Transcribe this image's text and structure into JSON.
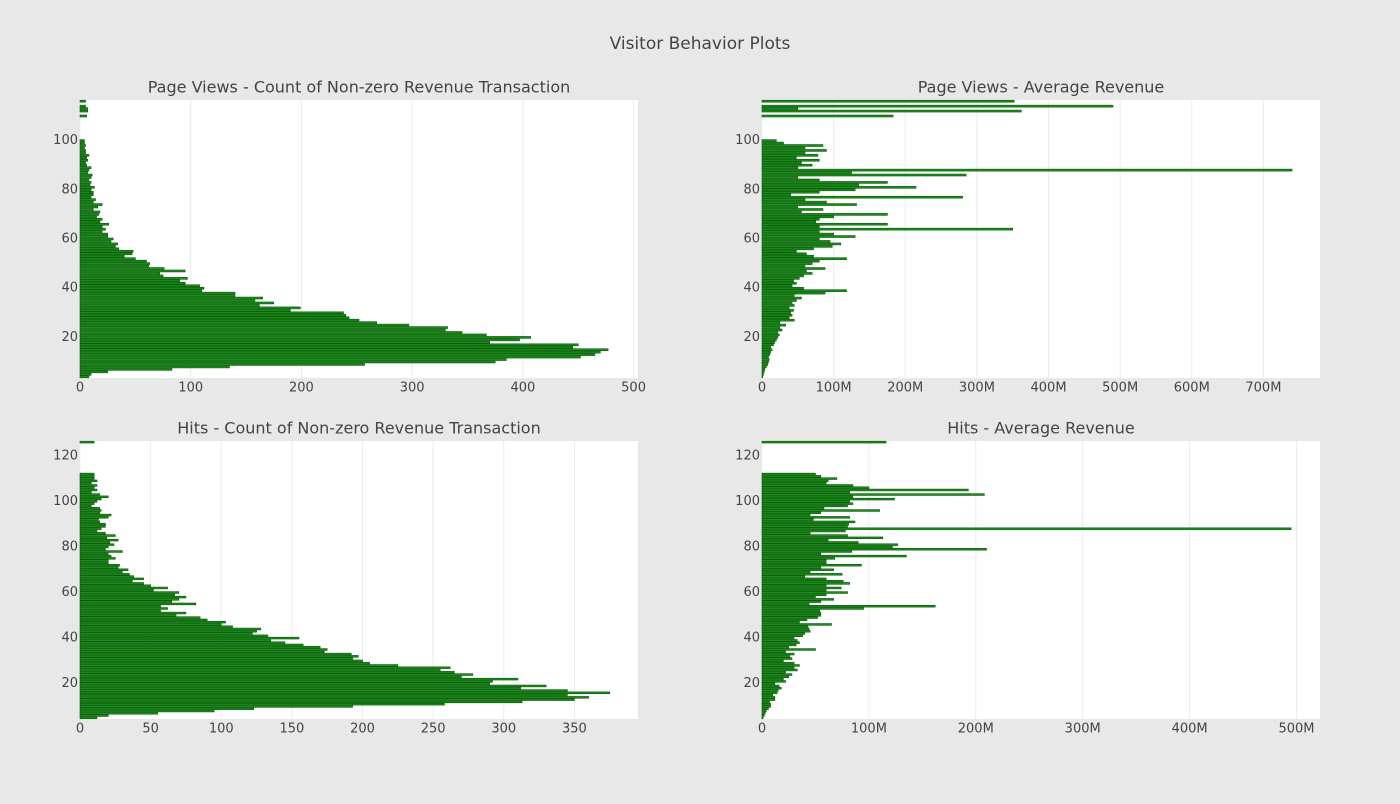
{
  "title": "Visitor Behavior Plots",
  "chart_data": [
    {
      "type": "bar",
      "orientation": "h",
      "title": "Page Views - Count of Non-zero Revenue Transaction",
      "color": "#1c8c1c",
      "y": [
        4,
        5,
        6,
        7,
        8,
        9,
        10,
        11,
        12,
        13,
        14,
        15,
        16,
        17,
        18,
        19,
        20,
        21,
        22,
        23,
        24,
        25,
        26,
        27,
        28,
        29,
        30,
        31,
        32,
        33,
        34,
        35,
        36,
        37,
        38,
        39,
        40,
        41,
        42,
        43,
        44,
        45,
        46,
        47,
        48,
        49,
        50,
        51,
        52,
        53,
        54,
        55,
        56,
        57,
        58,
        59,
        60,
        61,
        62,
        63,
        64,
        65,
        66,
        67,
        68,
        69,
        70,
        71,
        72,
        73,
        74,
        75,
        76,
        77,
        78,
        79,
        80,
        81,
        82,
        83,
        84,
        85,
        86,
        87,
        88,
        89,
        90,
        91,
        92,
        93,
        94,
        95,
        96,
        97,
        98,
        99,
        100,
        101,
        102,
        103,
        104,
        105,
        106,
        107,
        108,
        109,
        110,
        111,
        112,
        113,
        114,
        115,
        116
      ],
      "values": [
        8,
        10,
        25,
        83,
        135,
        257,
        375,
        385,
        452,
        465,
        470,
        477,
        445,
        450,
        370,
        397,
        407,
        367,
        345,
        330,
        332,
        297,
        268,
        252,
        243,
        240,
        238,
        190,
        199,
        162,
        175,
        158,
        165,
        140,
        140,
        110,
        112,
        108,
        95,
        90,
        97,
        75,
        72,
        95,
        76,
        62,
        63,
        60,
        50,
        40,
        47,
        48,
        35,
        32,
        34,
        28,
        30,
        25,
        25,
        20,
        23,
        20,
        26,
        18,
        20,
        15,
        17,
        18,
        12,
        16,
        20,
        12,
        14,
        10,
        12,
        12,
        10,
        13,
        9,
        10,
        8,
        10,
        11,
        7,
        8,
        10,
        6,
        5,
        7,
        6,
        8,
        5,
        5,
        4,
        5,
        4,
        4,
        0,
        0,
        0,
        0,
        0,
        0,
        0,
        0,
        0,
        6,
        0,
        7,
        7,
        5,
        0,
        5
      ],
      "xlim": [
        0,
        504
      ],
      "xticks": [
        0,
        100,
        200,
        300,
        400,
        500
      ],
      "ylim": [
        3.5,
        116.5
      ],
      "yticks": [
        20,
        40,
        60,
        80,
        100
      ],
      "grid": true
    },
    {
      "type": "bar",
      "orientation": "h",
      "title": "Page Views - Average Revenue",
      "color": "#1c8c1c",
      "y": [
        4,
        5,
        6,
        7,
        8,
        9,
        10,
        11,
        12,
        13,
        14,
        15,
        16,
        17,
        18,
        19,
        20,
        21,
        22,
        23,
        24,
        25,
        26,
        27,
        28,
        29,
        30,
        31,
        32,
        33,
        34,
        35,
        36,
        37,
        38,
        39,
        40,
        41,
        42,
        43,
        44,
        45,
        46,
        47,
        48,
        49,
        50,
        51,
        52,
        53,
        54,
        55,
        56,
        57,
        58,
        59,
        60,
        61,
        62,
        63,
        64,
        65,
        66,
        67,
        68,
        69,
        70,
        71,
        72,
        73,
        74,
        75,
        76,
        77,
        78,
        79,
        80,
        81,
        82,
        83,
        84,
        85,
        86,
        87,
        88,
        89,
        90,
        91,
        92,
        93,
        94,
        95,
        96,
        97,
        98,
        99,
        100,
        101,
        102,
        103,
        104,
        105,
        106,
        107,
        108,
        109,
        110,
        111,
        112,
        113,
        114,
        115,
        116
      ],
      "values": [
        1000000.0,
        2000000.0,
        3000000.0,
        4000000.0,
        6000000.0,
        8000000.0,
        9000000.0,
        10000000.0,
        9000000.0,
        11000000.0,
        12000000.0,
        14000000.0,
        12000000.0,
        16000000.0,
        18000000.0,
        20000000.0,
        22000000.0,
        24000000.0,
        22000000.0,
        28000000.0,
        25000000.0,
        33000000.0,
        25000000.0,
        45000000.0,
        38000000.0,
        42000000.0,
        40000000.0,
        44000000.0,
        38000000.0,
        45000000.0,
        42000000.0,
        48000000.0,
        55000000.0,
        45000000.0,
        88000000.0,
        118000000.0,
        58000000.0,
        42000000.0,
        48000000.0,
        44000000.0,
        52000000.0,
        58000000.0,
        70000000.0,
        62000000.0,
        88000000.0,
        60000000.0,
        70000000.0,
        80000000.0,
        118000000.0,
        72000000.0,
        62000000.0,
        48000000.0,
        72000000.0,
        98000000.0,
        110000000.0,
        95000000.0,
        80000000.0,
        130000000.0,
        100000000.0,
        80000000.0,
        350000000.0,
        80000000.0,
        175000000.0,
        75000000.0,
        80000000.0,
        100000000.0,
        175000000.0,
        55000000.0,
        85000000.0,
        50000000.0,
        132000000.0,
        90000000.0,
        60000000.0,
        280000000.0,
        40000000.0,
        80000000.0,
        130000000.0,
        215000000.0,
        135000000.0,
        175000000.0,
        80000000.0,
        50000000.0,
        285000000.0,
        125000000.0,
        740000000.0,
        50000000.0,
        70000000.0,
        55000000.0,
        80000000.0,
        48000000.0,
        78000000.0,
        60000000.0,
        90000000.0,
        60000000.0,
        85000000.0,
        30000000.0,
        20000000.0,
        null,
        null,
        null,
        null,
        null,
        null,
        null,
        null,
        null,
        183000000.0,
        null,
        362000000.0,
        50000000.0,
        490000000.0,
        null,
        352000000.0
      ],
      "xlim": [
        0,
        779000000.0
      ],
      "xticks": [
        0,
        {
          "value": 100000000.0,
          "label": "100M"
        },
        {
          "value": 200000000.0,
          "label": "200M"
        },
        {
          "value": 300000000.0,
          "label": "300M"
        },
        {
          "value": 400000000.0,
          "label": "400M"
        },
        {
          "value": 500000000.0,
          "label": "500M"
        },
        {
          "value": 600000000.0,
          "label": "600M"
        },
        {
          "value": 700000000.0,
          "label": "700M"
        }
      ],
      "ylim": [
        3.5,
        116.5
      ],
      "yticks": [
        20,
        40,
        60,
        80,
        100
      ],
      "grid": true
    },
    {
      "type": "bar",
      "orientation": "h",
      "title": "Hits - Count of Non-zero Revenue Transaction",
      "color": "#1c8c1c",
      "y": [
        5,
        6,
        7,
        8,
        9,
        10,
        11,
        12,
        13,
        14,
        15,
        16,
        17,
        18,
        19,
        20,
        21,
        22,
        23,
        24,
        25,
        26,
        27,
        28,
        29,
        30,
        31,
        32,
        33,
        34,
        35,
        36,
        37,
        38,
        39,
        40,
        41,
        42,
        43,
        44,
        45,
        46,
        47,
        48,
        49,
        50,
        51,
        52,
        53,
        54,
        55,
        56,
        57,
        58,
        59,
        60,
        61,
        62,
        63,
        64,
        65,
        66,
        67,
        68,
        69,
        70,
        71,
        72,
        73,
        74,
        75,
        76,
        77,
        78,
        79,
        80,
        81,
        82,
        83,
        84,
        85,
        86,
        87,
        88,
        89,
        90,
        91,
        92,
        93,
        94,
        95,
        96,
        97,
        98,
        99,
        100,
        101,
        102,
        103,
        104,
        105,
        106,
        107,
        108,
        109,
        110,
        111,
        112,
        113,
        114,
        115,
        116,
        117,
        118,
        119,
        120,
        121,
        122,
        123,
        124,
        125,
        126
      ],
      "values": [
        12,
        20,
        55,
        95,
        123,
        193,
        258,
        313,
        350,
        360,
        345,
        375,
        345,
        312,
        330,
        290,
        292,
        310,
        270,
        278,
        265,
        255,
        262,
        225,
        205,
        200,
        193,
        197,
        192,
        173,
        175,
        170,
        158,
        145,
        135,
        155,
        133,
        122,
        125,
        128,
        108,
        100,
        103,
        90,
        85,
        68,
        75,
        57,
        62,
        57,
        82,
        65,
        70,
        75,
        67,
        70,
        52,
        62,
        50,
        45,
        37,
        45,
        38,
        35,
        30,
        34,
        27,
        28,
        20,
        20,
        25,
        22,
        20,
        30,
        18,
        20,
        24,
        21,
        27,
        19,
        25,
        18,
        12,
        15,
        18,
        18,
        14,
        13,
        20,
        22,
        14,
        15,
        14,
        8,
        10,
        12,
        15,
        20,
        14,
        8,
        12,
        10,
        12,
        8,
        12,
        10,
        10,
        10,
        0,
        0,
        0,
        0,
        0,
        0,
        0,
        0,
        0,
        0,
        0,
        0,
        0,
        10
      ],
      "xlim": [
        0,
        395
      ],
      "xticks": [
        0,
        50,
        100,
        150,
        200,
        250,
        300,
        350
      ],
      "ylim": [
        4.5,
        126.5
      ],
      "yticks": [
        20,
        40,
        60,
        80,
        100,
        120
      ],
      "grid": true
    },
    {
      "type": "bar",
      "orientation": "h",
      "title": "Hits - Average Revenue",
      "color": "#1c8c1c",
      "y": [
        5,
        6,
        7,
        8,
        9,
        10,
        11,
        12,
        13,
        14,
        15,
        16,
        17,
        18,
        19,
        20,
        21,
        22,
        23,
        24,
        25,
        26,
        27,
        28,
        29,
        30,
        31,
        32,
        33,
        34,
        35,
        36,
        37,
        38,
        39,
        40,
        41,
        42,
        43,
        44,
        45,
        46,
        47,
        48,
        49,
        50,
        51,
        52,
        53,
        54,
        55,
        56,
        57,
        58,
        59,
        60,
        61,
        62,
        63,
        64,
        65,
        66,
        67,
        68,
        69,
        70,
        71,
        72,
        73,
        74,
        75,
        76,
        77,
        78,
        79,
        80,
        81,
        82,
        83,
        84,
        85,
        86,
        87,
        88,
        89,
        90,
        91,
        92,
        93,
        94,
        95,
        96,
        97,
        98,
        99,
        100,
        101,
        102,
        103,
        104,
        105,
        106,
        107,
        108,
        109,
        110,
        111,
        112,
        113,
        114,
        115,
        116,
        117,
        118,
        119,
        120,
        121,
        122,
        123,
        124,
        125,
        126
      ],
      "values": [
        1000000.0,
        2000000.0,
        3000000.0,
        4000000.0,
        6000000.0,
        8000000.0,
        8000000.0,
        7000000.0,
        12000000.0,
        12000000.0,
        10000000.0,
        14000000.0,
        15000000.0,
        18000000.0,
        16000000.0,
        12000000.0,
        22000000.0,
        20000000.0,
        25000000.0,
        28000000.0,
        22000000.0,
        33000000.0,
        30000000.0,
        35000000.0,
        30000000.0,
        20000000.0,
        28000000.0,
        26000000.0,
        30000000.0,
        22000000.0,
        50000000.0,
        25000000.0,
        32000000.0,
        35000000.0,
        33000000.0,
        30000000.0,
        38000000.0,
        40000000.0,
        45000000.0,
        44000000.0,
        43000000.0,
        65000000.0,
        35000000.0,
        42000000.0,
        52000000.0,
        55000000.0,
        55000000.0,
        54000000.0,
        95000000.0,
        162000000.0,
        44000000.0,
        55000000.0,
        67000000.0,
        50000000.0,
        60000000.0,
        80000000.0,
        60000000.0,
        74000000.0,
        60000000.0,
        82000000.0,
        76000000.0,
        60000000.0,
        40000000.0,
        75000000.0,
        45000000.0,
        67000000.0,
        55000000.0,
        93000000.0,
        60000000.0,
        60000000.0,
        68000000.0,
        135000000.0,
        55000000.0,
        84000000.0,
        210000000.0,
        122000000.0,
        127000000.0,
        90000000.0,
        62000000.0,
        113000000.0,
        80000000.0,
        45000000.0,
        78000000.0,
        495000000.0,
        80000000.0,
        81000000.0,
        87000000.0,
        48000000.0,
        82000000.0,
        45000000.0,
        55000000.0,
        110000000.0,
        58000000.0,
        80000000.0,
        85000000.0,
        82000000.0,
        124000000.0,
        85000000.0,
        208000000.0,
        82000000.0,
        193000000.0,
        100000000.0,
        85000000.0,
        60000000.0,
        62000000.0,
        70000000.0,
        55000000.0,
        50000000.0,
        null,
        null,
        null,
        null,
        null,
        null,
        null,
        null,
        null,
        null,
        null,
        null,
        null,
        116000000.0
      ],
      "xlim": [
        0,
        522000000.0
      ],
      "xticks": [
        0,
        {
          "value": 100000000.0,
          "label": "100M"
        },
        {
          "value": 200000000.0,
          "label": "200M"
        },
        {
          "value": 300000000.0,
          "label": "300M"
        },
        {
          "value": 400000000.0,
          "label": "400M"
        },
        {
          "value": 500000000.0,
          "label": "500M"
        }
      ],
      "ylim": [
        4.5,
        126.5
      ],
      "yticks": [
        20,
        40,
        60,
        80,
        100,
        120
      ],
      "grid": true
    }
  ]
}
